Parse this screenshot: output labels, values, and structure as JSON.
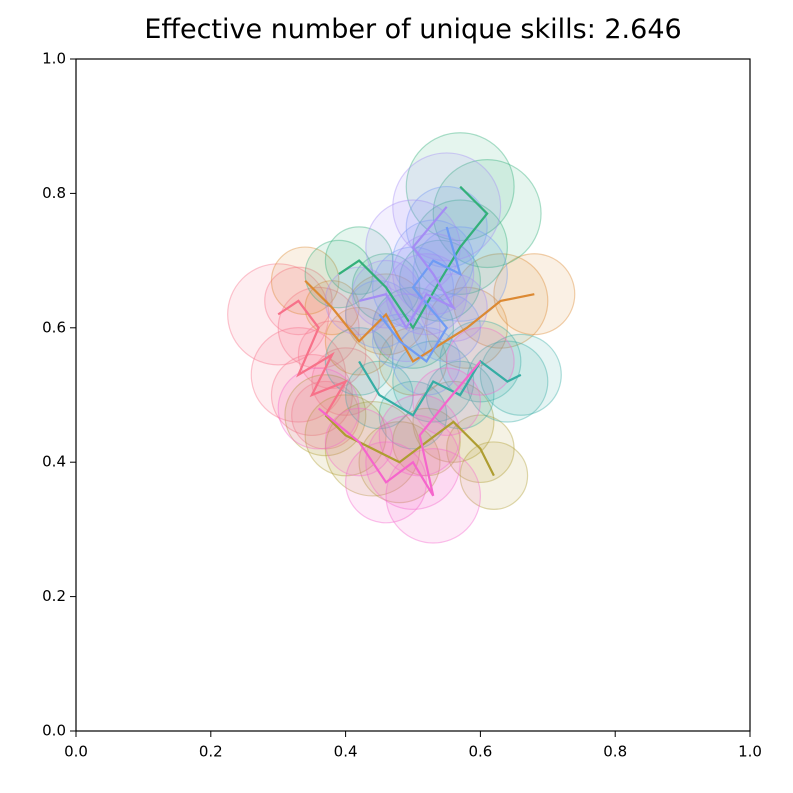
{
  "chart_data": {
    "type": "line",
    "title": "Effective number of unique skills: 2.646",
    "xlim": [
      0,
      1
    ],
    "ylim": [
      0,
      1
    ],
    "xticks": [
      {
        "value": 0,
        "label": "0.0"
      },
      {
        "value": 0.2,
        "label": "0.2"
      },
      {
        "value": 0.4,
        "label": "0.4"
      },
      {
        "value": 0.6,
        "label": "0.6"
      },
      {
        "value": 0.8,
        "label": "0.8"
      },
      {
        "value": 1,
        "label": "1.0"
      }
    ],
    "yticks": [
      {
        "value": 0,
        "label": "0.0"
      },
      {
        "value": 0.2,
        "label": "0.2"
      },
      {
        "value": 0.4,
        "label": "0.4"
      },
      {
        "value": 0.6,
        "label": "0.6"
      },
      {
        "value": 0.8,
        "label": "0.8"
      },
      {
        "value": 1,
        "label": "1.0"
      }
    ],
    "series": [
      {
        "color": "#f77189",
        "x": [
          0.3,
          0.33,
          0.36,
          0.33,
          0.38,
          0.35,
          0.4,
          0.37
        ],
        "y": [
          0.62,
          0.64,
          0.6,
          0.53,
          0.56,
          0.5,
          0.52,
          0.47
        ],
        "r": [
          0.075,
          0.05,
          0.06,
          0.07,
          0.05,
          0.06,
          0.05,
          0.05
        ]
      },
      {
        "color": "#dc8932",
        "x": [
          0.34,
          0.38,
          0.42,
          0.46,
          0.5,
          0.58,
          0.63,
          0.68
        ],
        "y": [
          0.67,
          0.63,
          0.58,
          0.62,
          0.55,
          0.6,
          0.64,
          0.65
        ],
        "r": [
          0.05,
          0.04,
          0.05,
          0.06,
          0.05,
          0.06,
          0.07,
          0.06
        ]
      },
      {
        "color": "#ae9d31",
        "x": [
          0.37,
          0.4,
          0.44,
          0.48,
          0.52,
          0.56,
          0.6,
          0.62
        ],
        "y": [
          0.47,
          0.44,
          0.42,
          0.4,
          0.43,
          0.46,
          0.42,
          0.38
        ],
        "r": [
          0.06,
          0.06,
          0.07,
          0.06,
          0.05,
          0.06,
          0.05,
          0.05
        ]
      },
      {
        "color": "#33b07a",
        "x": [
          0.39,
          0.42,
          0.46,
          0.5,
          0.54,
          0.57,
          0.61,
          0.57
        ],
        "y": [
          0.68,
          0.7,
          0.66,
          0.6,
          0.67,
          0.72,
          0.77,
          0.81
        ],
        "r": [
          0.05,
          0.05,
          0.05,
          0.06,
          0.06,
          0.07,
          0.08,
          0.08
        ]
      },
      {
        "color": "#36ada4",
        "x": [
          0.42,
          0.45,
          0.5,
          0.53,
          0.57,
          0.6,
          0.64,
          0.66
        ],
        "y": [
          0.55,
          0.5,
          0.47,
          0.52,
          0.5,
          0.55,
          0.52,
          0.53
        ],
        "r": [
          0.05,
          0.05,
          0.05,
          0.06,
          0.05,
          0.06,
          0.06,
          0.06
        ]
      },
      {
        "color": "#6e9bf4",
        "x": [
          0.45,
          0.48,
          0.52,
          0.55,
          0.5,
          0.53,
          0.57,
          0.55
        ],
        "y": [
          0.62,
          0.58,
          0.55,
          0.6,
          0.66,
          0.7,
          0.68,
          0.75
        ],
        "r": [
          0.05,
          0.04,
          0.05,
          0.05,
          0.06,
          0.06,
          0.07,
          0.06
        ]
      },
      {
        "color": "#a48cf4",
        "x": [
          0.42,
          0.46,
          0.49,
          0.52,
          0.56,
          0.53,
          0.5,
          0.55
        ],
        "y": [
          0.64,
          0.65,
          0.6,
          0.65,
          0.63,
          0.68,
          0.72,
          0.78
        ],
        "r": [
          0.05,
          0.05,
          0.05,
          0.06,
          0.05,
          0.06,
          0.07,
          0.08
        ]
      },
      {
        "color": "#f565cc",
        "x": [
          0.36,
          0.42,
          0.46,
          0.5,
          0.53,
          0.51,
          0.55,
          0.6
        ],
        "y": [
          0.48,
          0.43,
          0.37,
          0.4,
          0.35,
          0.44,
          0.49,
          0.55
        ],
        "r": [
          0.06,
          0.05,
          0.06,
          0.07,
          0.07,
          0.06,
          0.05,
          0.05
        ]
      }
    ]
  }
}
